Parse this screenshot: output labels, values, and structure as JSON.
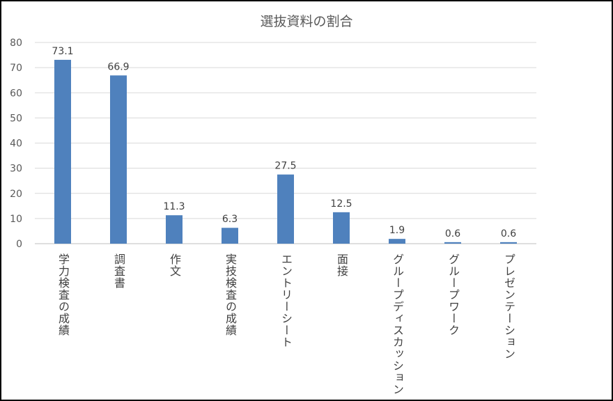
{
  "chart_data": {
    "type": "bar",
    "title": "選抜資料の割合",
    "xlabel": "",
    "ylabel": "",
    "ylim": [
      0,
      80
    ],
    "yticks": [
      0,
      10,
      20,
      30,
      40,
      50,
      60,
      70,
      80
    ],
    "grid": true,
    "categories": [
      "学力検査の成績",
      "調査書",
      "作文",
      "実技検査の成績",
      "エントリーシート",
      "面接",
      "グループディスカッション",
      "グループワーク",
      "プレゼンテーション"
    ],
    "values": [
      73.1,
      66.9,
      11.3,
      6.3,
      27.5,
      12.5,
      1.9,
      0.6,
      0.6
    ],
    "data_labels": [
      "73.1",
      "66.9",
      "11.3",
      "6.3",
      "27.5",
      "12.5",
      "1.9",
      "0.6",
      "0.6"
    ],
    "bar_color": "#4F81BD",
    "grid_color": "#D9D9D9"
  }
}
